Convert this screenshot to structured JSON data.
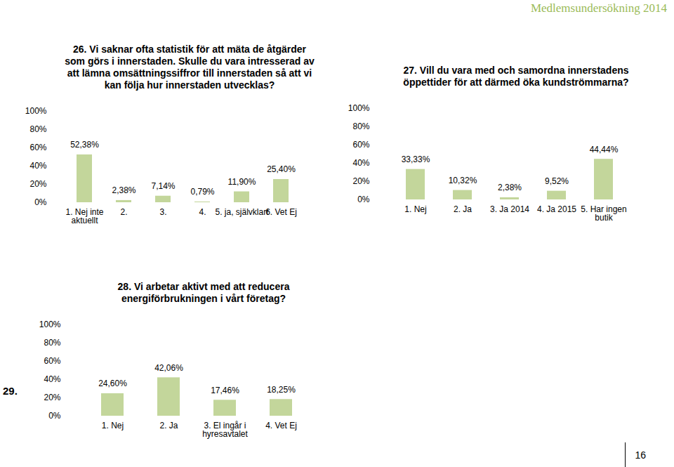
{
  "page": {
    "header": "Medlemsundersökning 2014",
    "page_number": "16",
    "side_label": "29."
  },
  "chart_data": [
    {
      "type": "bar",
      "title": "26. Vi saknar ofta statistik för att mäta de åtgärder som görs i innerstaden. Skulle du vara intresserad av att lämna omsättningssiffror till innerstaden så att vi kan följa hur innerstaden utvecklas?",
      "categories": [
        "1. Nej inte aktuellt",
        "2.",
        "3.",
        "4.",
        "5. ja, självklart",
        "6. Vet Ej"
      ],
      "values": [
        52.38,
        2.38,
        7.14,
        0.79,
        11.9,
        25.4
      ],
      "value_labels": [
        "52,38%",
        "2,38%",
        "7,14%",
        "0,79%",
        "11,90%",
        "25,40%"
      ],
      "color": "#c3d69b",
      "ylim": [
        0,
        100
      ],
      "yticks": [
        {
          "value": 0,
          "label": "0%"
        },
        {
          "value": 20,
          "label": "20%"
        },
        {
          "value": 40,
          "label": "40%"
        },
        {
          "value": 60,
          "label": "60%"
        },
        {
          "value": 80,
          "label": "80%"
        },
        {
          "value": 100,
          "label": "100%"
        }
      ],
      "grid": false,
      "data_labels": true
    },
    {
      "type": "bar",
      "title": "27. Vill du vara med och samordna innerstadens öppettider för att därmed öka kundströmmarna?",
      "categories": [
        "1. Nej",
        "2. Ja",
        "3. Ja 2014",
        "4. Ja 2015",
        "5. Har ingen butik"
      ],
      "values": [
        33.33,
        10.32,
        2.38,
        9.52,
        44.44
      ],
      "value_labels": [
        "33,33%",
        "10,32%",
        "2,38%",
        "9,52%",
        "44,44%"
      ],
      "color": "#c3d69b",
      "ylim": [
        0,
        100
      ],
      "yticks": [
        {
          "value": 0,
          "label": "0%"
        },
        {
          "value": 20,
          "label": "20%"
        },
        {
          "value": 40,
          "label": "40%"
        },
        {
          "value": 60,
          "label": "60%"
        },
        {
          "value": 80,
          "label": "80%"
        },
        {
          "value": 100,
          "label": "100%"
        }
      ],
      "grid": false,
      "data_labels": true
    },
    {
      "type": "bar",
      "title": "28. Vi arbetar aktivt med att reducera energiförbrukningen i vårt företag?",
      "categories": [
        "1. Nej",
        "2. Ja",
        "3. El ingår i hyresavtalet",
        "4. Vet Ej"
      ],
      "values": [
        24.6,
        42.06,
        17.46,
        18.25
      ],
      "value_labels": [
        "24,60%",
        "42,06%",
        "17,46%",
        "18,25%"
      ],
      "color": "#c3d69b",
      "ylim": [
        0,
        100
      ],
      "yticks": [
        {
          "value": 0,
          "label": "0%"
        },
        {
          "value": 20,
          "label": "20%"
        },
        {
          "value": 40,
          "label": "40%"
        },
        {
          "value": 60,
          "label": "60%"
        },
        {
          "value": 80,
          "label": "80%"
        },
        {
          "value": 100,
          "label": "100%"
        }
      ],
      "grid": false,
      "data_labels": true
    }
  ]
}
